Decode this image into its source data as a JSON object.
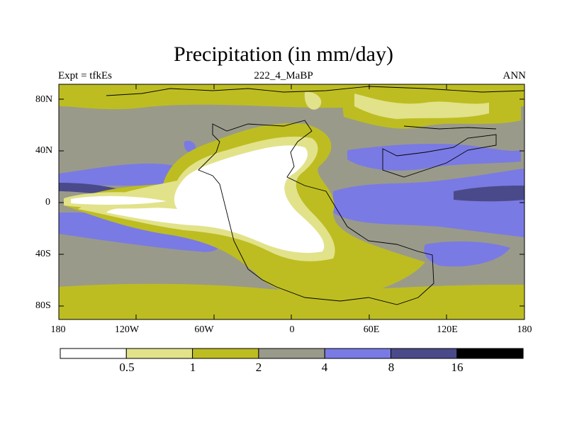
{
  "title": "Precipitation (in mm/day)",
  "subtitle_left": "Expt = tfkEs",
  "subtitle_center": "222_4_MaBP",
  "subtitle_right": "ANN",
  "lat_ticks": [
    "80N",
    "40N",
    "0",
    "40S",
    "80S"
  ],
  "lon_ticks": [
    "180",
    "120W",
    "60W",
    "0",
    "60E",
    "120E",
    "180"
  ],
  "colorbar": {
    "levels": [
      "0.5",
      "1",
      "2",
      "4",
      "8",
      "16"
    ],
    "colors": [
      "#ffffff",
      "#e2e28a",
      "#bdbd22",
      "#9a9a8a",
      "#7a7ae4",
      "#4a4a8a",
      "#000000"
    ]
  }
}
